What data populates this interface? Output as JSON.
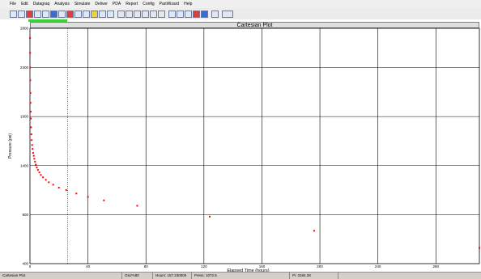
{
  "menu": [
    "File",
    "Edit",
    "Datagraq",
    "Analysis",
    "Simulate",
    "Deliver",
    "PDA",
    "Report",
    "Config",
    "PanWizard",
    "Help"
  ],
  "toolbar_icons": [
    "open-icon",
    "save-icon",
    "print-icon",
    "copy-icon",
    "paste-icon",
    "undo-icon",
    "cut-icon",
    "zoom-icon",
    "pan-icon",
    "grid-icon",
    "bar-chart-icon",
    "line-chart-icon",
    "table-icon",
    "flag-icon",
    "plot-icon",
    "semilog-icon",
    "loglog-icon",
    "history-icon",
    "match-icon",
    "tag-icon",
    "pencil-icon",
    "export-icon",
    "calc-icon",
    "trash-icon",
    "flag2-icon",
    "tx-icon"
  ],
  "status": {
    "view": "Cartesian Plot",
    "file": "OILFA80",
    "hours": "Hours: 157.230000",
    "press": "Press: 1072.5",
    "pi": "Pi: 3184.28"
  },
  "chart_data": {
    "type": "scatter",
    "title": "Cartesian Plot",
    "xlabel": "Elapsed Time (hours)",
    "ylabel": "Pressure (psi)",
    "xlim": [
      0,
      310
    ],
    "ylim": [
      400,
      2800
    ],
    "xticks": [
      0,
      40,
      80,
      120,
      160,
      200,
      240,
      280
    ],
    "yticks": [
      400,
      900,
      1400,
      1900,
      2400,
      2800
    ],
    "grid": true,
    "marker_color": "#ff0000",
    "cursor_x": 26,
    "series": [
      {
        "x": [
          0.05,
          0.1,
          0.15,
          0.2,
          0.3,
          0.4,
          0.5,
          0.6,
          0.8,
          1.0,
          1.2,
          1.5,
          1.8,
          2.2,
          2.6,
          3.0,
          3.5,
          4.0,
          4.7,
          5.5,
          6.5,
          7.5,
          9,
          11,
          13,
          16,
          20,
          25,
          32,
          40,
          51,
          74,
          124,
          196,
          310
        ],
        "y": [
          2700,
          2550,
          2400,
          2270,
          2140,
          2040,
          1950,
          1880,
          1790,
          1720,
          1660,
          1610,
          1570,
          1530,
          1500,
          1470,
          1440,
          1410,
          1380,
          1355,
          1330,
          1305,
          1280,
          1255,
          1230,
          1205,
          1175,
          1150,
          1115,
          1080,
          1045,
          990,
          880,
          735,
          560
        ]
      }
    ]
  }
}
